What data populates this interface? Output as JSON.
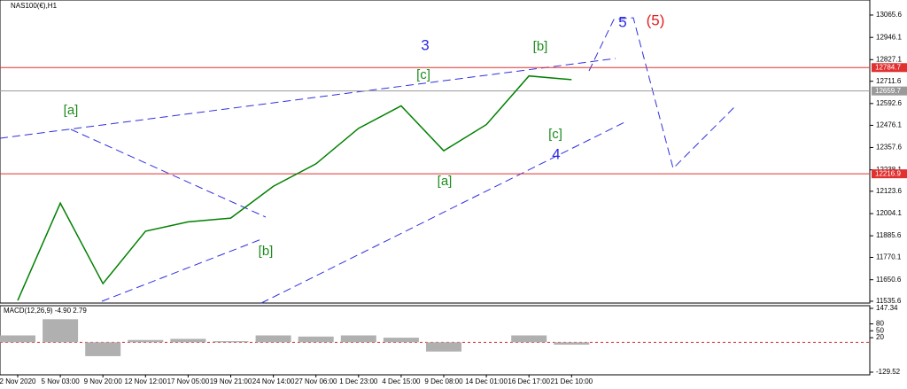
{
  "chart_data": {
    "type": "line",
    "title": "NAS100(€),H1",
    "categories": [
      "2 Nov 2020",
      "5 Nov 03:00",
      "9 Nov 20:00",
      "12 Nov 12:00",
      "17 Nov 05:00",
      "19 Nov 21:00",
      "24 Nov 14:00",
      "27 Nov 06:00",
      "1 Dec 23:00",
      "4 Dec 15:00",
      "9 Dec 08:00",
      "14 Dec 01:00",
      "16 Dec 17:00",
      "21 Dec 10:00"
    ],
    "series": [
      {
        "name": "NAS100",
        "color": "#008000",
        "values": [
          11540,
          12060,
          11630,
          11910,
          11960,
          11980,
          12150,
          12270,
          12460,
          12580,
          12340,
          12480,
          12740,
          12720
        ]
      }
    ],
    "ylim": [
      11526,
      13146
    ],
    "yticks": [
      13065.6,
      12946.1,
      12827.1,
      12711.6,
      12592.6,
      12476.1,
      12357.6,
      12238.1,
      12123.6,
      12004.1,
      11885.6,
      11770.1,
      11650.6,
      11535.6
    ],
    "hlines": [
      {
        "value": 12784.7,
        "color": "#e03030"
      },
      {
        "value": 12216.9,
        "color": "#e03030"
      },
      {
        "value": 12659.7,
        "color": "#9a9a9a"
      }
    ],
    "annotations": [
      {
        "text": "[a]",
        "color": "#1e8c1e"
      },
      {
        "text": "[b]",
        "color": "#1e8c1e"
      },
      {
        "text": "3",
        "color": "#2a2ae0"
      },
      {
        "text": "[c]",
        "color": "#1e8c1e"
      },
      {
        "text": "[a]",
        "color": "#1e8c1e"
      },
      {
        "text": "[b]",
        "color": "#1e8c1e"
      },
      {
        "text": "[c]",
        "color": "#1e8c1e"
      },
      {
        "text": "4",
        "color": "#2a2ae0"
      },
      {
        "text": "5",
        "color": "#2a2ae0"
      },
      {
        "text": "(5)",
        "color": "#e02020"
      }
    ],
    "macd": {
      "title": "MACD(12,26,9) -4.90 2.79",
      "color": "#b0b0b0",
      "values": [
        30,
        100,
        -60,
        10,
        15,
        5,
        30,
        25,
        30,
        20,
        -40,
        0,
        30,
        -10
      ],
      "ylim": [
        -129.52,
        147.34
      ],
      "yticks": [
        147.34,
        80,
        50,
        20,
        -129.52
      ]
    }
  }
}
